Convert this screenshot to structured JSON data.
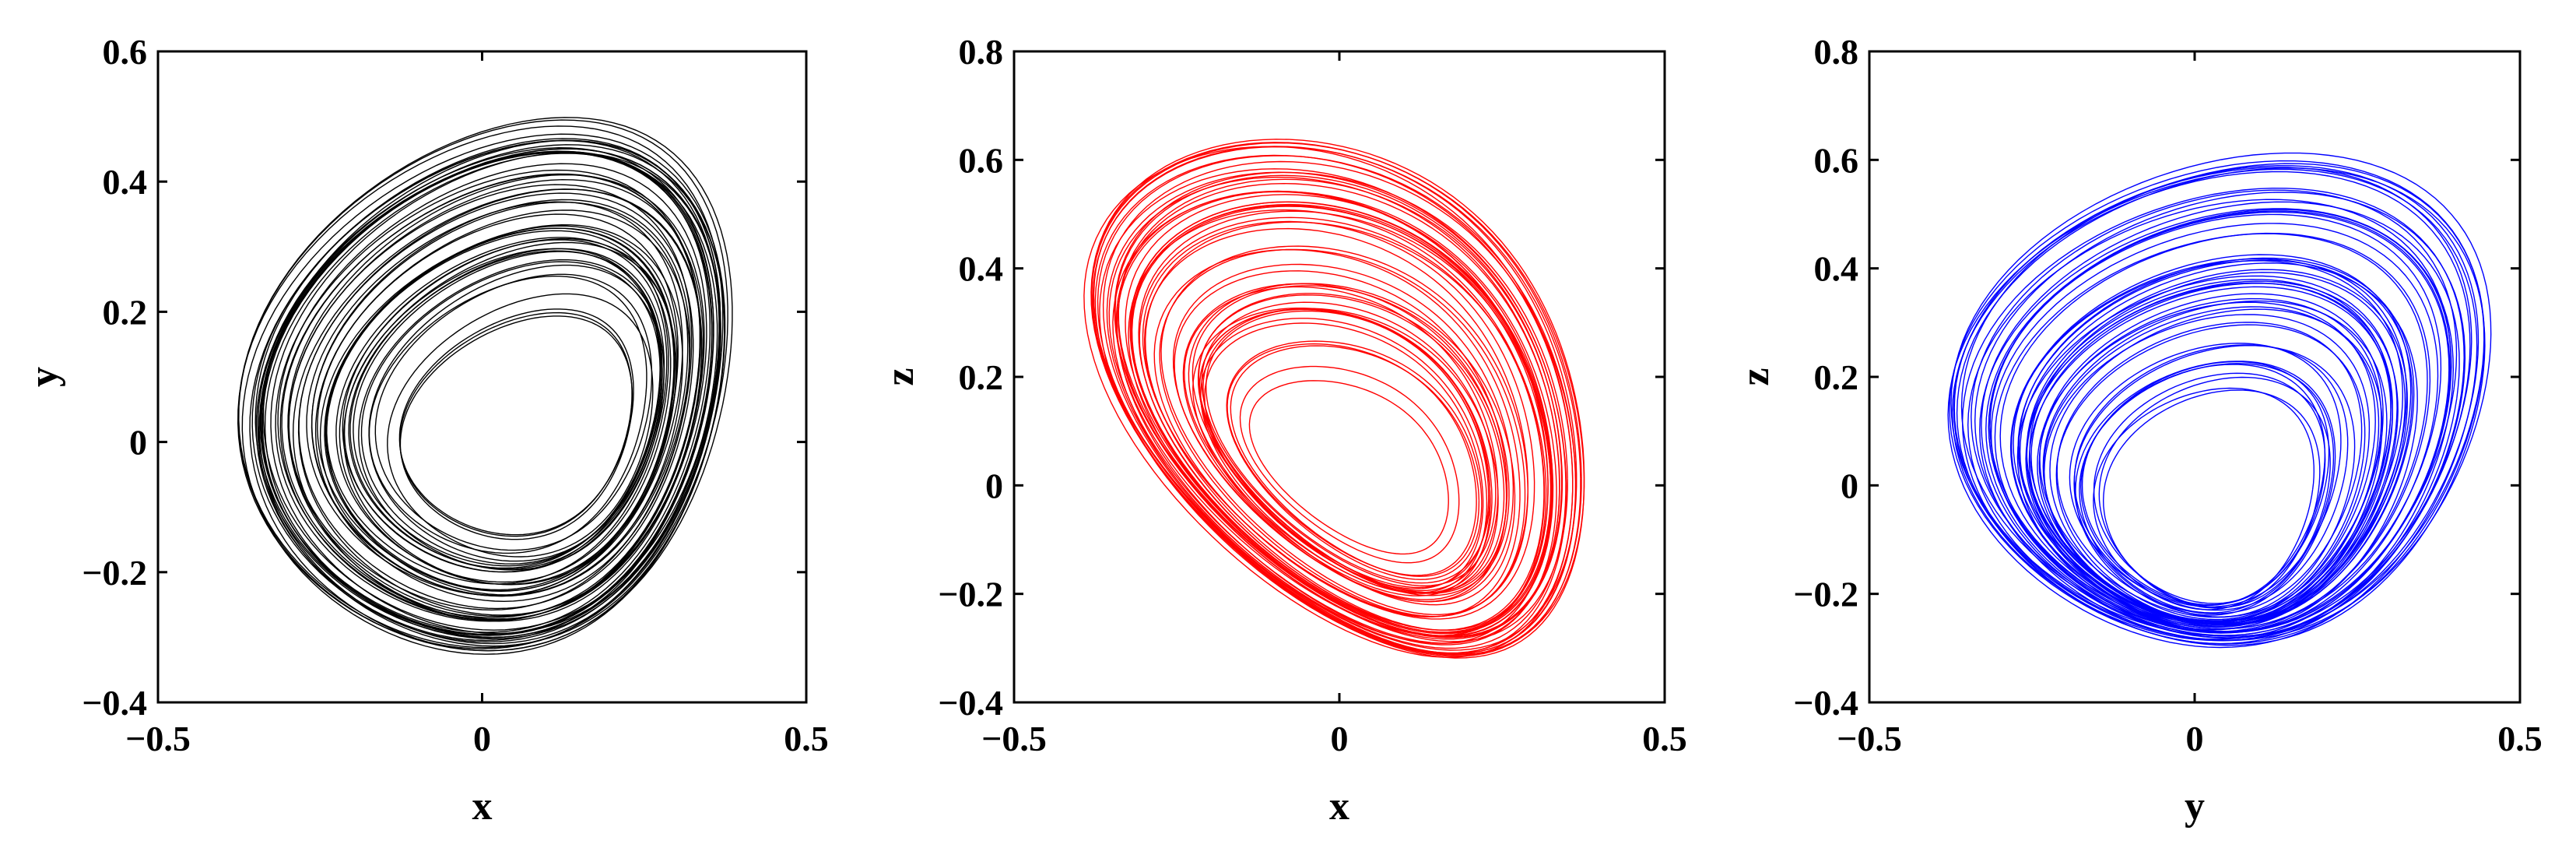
{
  "chart_data": [
    {
      "type": "line",
      "title": "",
      "xlabel": "x",
      "ylabel": "y",
      "xlim": [
        -0.5,
        0.5
      ],
      "ylim": [
        -0.4,
        0.6
      ],
      "xticks": [
        -0.5,
        0,
        0.5
      ],
      "yticks": [
        -0.4,
        -0.2,
        0,
        0.2,
        0.4,
        0.6
      ],
      "xtick_labels": [
        "−0.5",
        "0",
        "0.5"
      ],
      "ytick_labels": [
        "−0.4",
        "−0.2",
        "0",
        "0.2",
        "0.4",
        "0.6"
      ],
      "grid": false,
      "color": "#000000",
      "attractor": {
        "outer": [
          -0.32,
          0.44,
          -0.32,
          0.49
        ],
        "inner": [
          -0.09,
          0.26,
          -0.14,
          0.19
        ]
      }
    },
    {
      "type": "line",
      "title": "",
      "xlabel": "x",
      "ylabel": "z",
      "xlim": [
        -0.5,
        0.5
      ],
      "ylim": [
        -0.4,
        0.8
      ],
      "xticks": [
        -0.5,
        0,
        0.5
      ],
      "yticks": [
        -0.4,
        -0.2,
        0,
        0.2,
        0.4,
        0.6,
        0.8
      ],
      "xtick_labels": [
        "−0.5",
        "0",
        "0.5"
      ],
      "ytick_labels": [
        "−0.4",
        "−0.2",
        "0",
        "0.2",
        "0.4",
        "0.6",
        "0.8"
      ],
      "grid": false,
      "color": "#ff0000",
      "attractor": {
        "outer": [
          -0.32,
          0.44,
          -0.29,
          0.6
        ],
        "inner": [
          -0.1,
          0.2,
          -0.12,
          0.16
        ]
      }
    },
    {
      "type": "line",
      "title": "",
      "xlabel": "y",
      "ylabel": "z",
      "xlim": [
        -0.5,
        0.5
      ],
      "ylim": [
        -0.4,
        0.8
      ],
      "xticks": [
        -0.5,
        0,
        0.5
      ],
      "yticks": [
        -0.4,
        -0.2,
        0,
        0.2,
        0.4,
        0.6,
        0.8
      ],
      "xtick_labels": [
        "−0.5",
        "0",
        "0.5"
      ],
      "ytick_labels": [
        "−0.4",
        "−0.2",
        "0",
        "0.2",
        "0.4",
        "0.6",
        "0.8"
      ],
      "grid": false,
      "color": "#0000ff",
      "attractor": {
        "outer": [
          -0.33,
          0.5,
          -0.29,
          0.61
        ],
        "inner": [
          -0.12,
          0.2,
          -0.22,
          0.17
        ]
      }
    }
  ]
}
